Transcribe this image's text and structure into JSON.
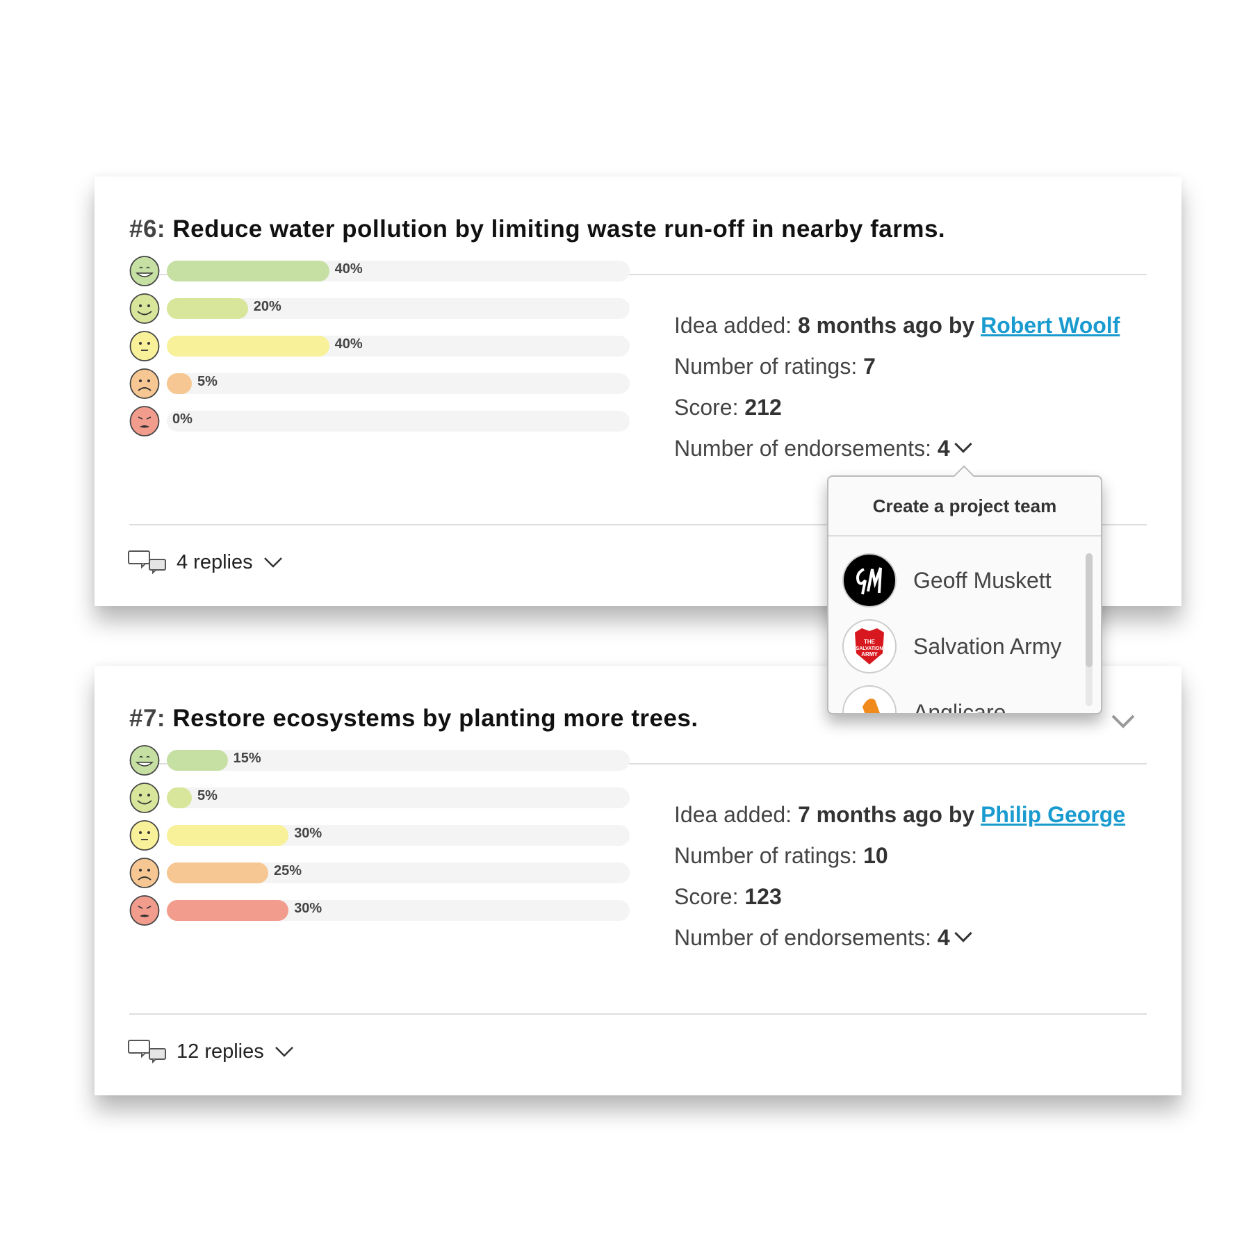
{
  "colors": {
    "very_happy": "#c6e0a3",
    "happy": "#d8e69c",
    "neutral": "#f8f19a",
    "sad": "#f6c792",
    "angry": "#f19c8d",
    "link": "#1a9bd0",
    "track": "#f4f4f4"
  },
  "ideas": [
    {
      "number": "#6:",
      "title": "Reduce water pollution by limiting waste run-off in nearby farms.",
      "ratings": [
        {
          "face": "very-happy",
          "percent": 40,
          "label": "40%"
        },
        {
          "face": "happy",
          "percent": 20,
          "label": "20%"
        },
        {
          "face": "neutral",
          "percent": 40,
          "label": "40%"
        },
        {
          "face": "sad",
          "percent": 5,
          "label": "5%"
        },
        {
          "face": "angry",
          "percent": 0,
          "label": "0%"
        }
      ],
      "added_label": "Idea added:",
      "added_value": "8 months ago by",
      "author": "Robert Woolf",
      "ratings_label": "Number of ratings:",
      "ratings_count": "7",
      "score_label": "Score:",
      "score": "212",
      "endorsements_label": "Number of endorsements:",
      "endorsements": "4",
      "replies": "4 replies"
    },
    {
      "number": "#7:",
      "title": "Restore ecosystems by planting more trees.",
      "ratings": [
        {
          "face": "very-happy",
          "percent": 15,
          "label": "15%"
        },
        {
          "face": "happy",
          "percent": 5,
          "label": "5%"
        },
        {
          "face": "neutral",
          "percent": 30,
          "label": "30%"
        },
        {
          "face": "sad",
          "percent": 25,
          "label": "25%"
        },
        {
          "face": "angry",
          "percent": 30,
          "label": "30%"
        }
      ],
      "added_label": "Idea added:",
      "added_value": "7 months ago by",
      "author": "Philip George",
      "ratings_label": "Number of ratings:",
      "ratings_count": "10",
      "score_label": "Score:",
      "score": "123",
      "endorsements_label": "Number of endorsements:",
      "endorsements": "4",
      "replies": "12 replies"
    }
  ],
  "popup": {
    "title": "Create a project team",
    "items": [
      {
        "name": "Geoff Muskett",
        "logo_text": "GM"
      },
      {
        "name": "Salvation Army",
        "logo_text": "THE SALVATION ARMY"
      },
      {
        "name": "Anglicare"
      }
    ]
  }
}
